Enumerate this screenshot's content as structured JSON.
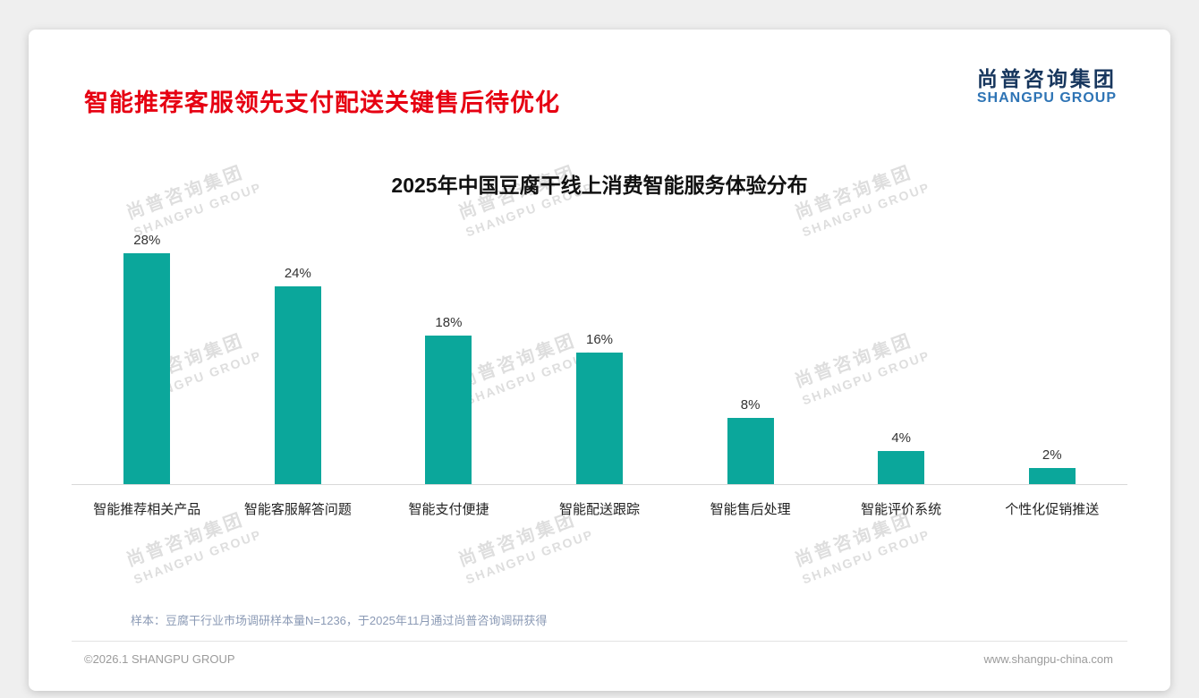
{
  "colors": {
    "accent-red": "#e60012",
    "logo-navy": "#17365d",
    "logo-blue": "#2e74b5",
    "bar-teal": "#0ba79b"
  },
  "page": {
    "title": "智能推荐客服领先支付配送关键售后待优化",
    "logo": {
      "cn": "尚普咨询集团",
      "en": "SHANGPU GROUP"
    },
    "watermark": {
      "cn": "尚普咨询集团",
      "en": "SHANGPU GROUP"
    },
    "footnote": "样本：豆腐干行业市场调研样本量N=1236，于2025年11月通过尚普咨询调研获得",
    "copyright": "©2026.1 SHANGPU GROUP",
    "website": "www.shangpu-china.com"
  },
  "chart_data": {
    "type": "bar",
    "title": "2025年中国豆腐干线上消费智能服务体验分布",
    "categories": [
      "智能推荐相关产品",
      "智能客服解答问题",
      "智能支付便捷",
      "智能配送跟踪",
      "智能售后处理",
      "智能评价系统",
      "个性化促销推送"
    ],
    "values": [
      28,
      24,
      18,
      16,
      8,
      4,
      2
    ],
    "value_labels": [
      "28%",
      "24%",
      "18%",
      "16%",
      "8%",
      "4%",
      "2%"
    ],
    "xlabel": "",
    "ylabel": "",
    "ylim": [
      0,
      30
    ],
    "grid": false,
    "legend": false,
    "bar_color": "#0ba79b"
  }
}
